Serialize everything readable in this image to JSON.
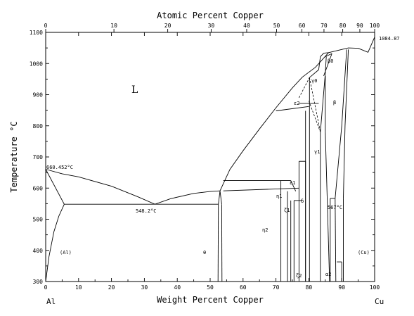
{
  "chart_data": {
    "type": "phase-diagram",
    "top_axis": {
      "title": "Atomic Percent Copper",
      "ticks": [
        "0",
        "10",
        "20",
        "30",
        "40",
        "50",
        "60",
        "70",
        "80",
        "90",
        "100"
      ],
      "tick_weight_positions": [
        0,
        20.75,
        37.1,
        50.3,
        61.1,
        70.2,
        77.9,
        84.6,
        90.3,
        95.5,
        100
      ]
    },
    "x_axis": {
      "title": "Weight Percent Copper",
      "ticks": [
        "0",
        "10",
        "20",
        "30",
        "40",
        "50",
        "60",
        "70",
        "80",
        "90",
        "100"
      ],
      "range": [
        0,
        100
      ]
    },
    "y_axis": {
      "title": "Temperature °C",
      "ticks": [
        "300",
        "400",
        "500",
        "600",
        "700",
        "800",
        "900",
        "1000",
        "1100"
      ],
      "range": [
        300,
        1100
      ]
    },
    "corner_labels": {
      "left": "Al",
      "right": "Cu"
    },
    "annotations": {
      "al_melting": "660.452°C",
      "eutectic": "548.2°C",
      "cu_melting": "1084.87",
      "eutectoid": "567°C"
    },
    "phase_labels": {
      "liquid": "L",
      "al": "(Al)",
      "cu": "(Cu)",
      "theta": "θ",
      "eta1": "η1",
      "eta2": "η2",
      "zeta1": "ζ1",
      "zeta2": "ζ2",
      "delta": "δ",
      "epsilon1": "ε1",
      "epsilon2": "ε2",
      "gamma0": "γ0",
      "gamma1": "γ1",
      "beta": "β",
      "beta0": "β0",
      "alpha2": "α2"
    },
    "boundaries": [
      [
        [
          0,
          660.452
        ],
        [
          5,
          646
        ],
        [
          10,
          636
        ],
        [
          20,
          606
        ],
        [
          28,
          572
        ],
        [
          33.2,
          548.2
        ],
        [
          38,
          566
        ],
        [
          45,
          583
        ],
        [
          50,
          589
        ],
        [
          53,
          591
        ]
      ],
      [
        [
          53,
          591
        ],
        [
          56,
          660
        ],
        [
          60,
          720
        ],
        [
          65,
          790
        ],
        [
          70,
          858
        ],
        [
          75,
          922
        ],
        [
          78,
          956
        ],
        [
          82,
          988
        ],
        [
          86,
          1035
        ],
        [
          88,
          1040
        ]
      ],
      [
        [
          88,
          1040
        ],
        [
          92,
          1050
        ],
        [
          95,
          1049
        ],
        [
          98,
          1036
        ],
        [
          100,
          1084.87
        ]
      ],
      [
        [
          0,
          660.452
        ],
        [
          5.65,
          548.2
        ]
      ],
      [
        [
          0,
          300
        ],
        [
          1,
          380
        ],
        [
          2.5,
          460
        ],
        [
          4,
          510
        ],
        [
          5.65,
          548.2
        ]
      ],
      [
        [
          5.65,
          548.2
        ],
        [
          52.5,
          548.2
        ]
      ],
      [
        [
          52.5,
          548.2
        ],
        [
          53,
          591
        ],
        [
          53.5,
          548.2
        ]
      ],
      [
        [
          52.5,
          548.2
        ],
        [
          52.4,
          300
        ]
      ],
      [
        [
          53.5,
          548.2
        ],
        [
          53.6,
          300
        ]
      ],
      [
        [
          54,
          591
        ],
        [
          77,
          600
        ]
      ],
      [
        [
          54,
          624
        ],
        [
          74.5,
          624
        ]
      ],
      [
        [
          74.5,
          624
        ],
        [
          76,
          590
        ]
      ],
      [
        [
          71.5,
          300
        ],
        [
          71.5,
          624
        ]
      ],
      [
        [
          73.5,
          300
        ],
        [
          73.5,
          590
        ]
      ],
      [
        [
          74.5,
          300
        ],
        [
          74.5,
          560
        ]
      ],
      [
        [
          75.5,
          300
        ],
        [
          75.5,
          560
        ]
      ],
      [
        [
          77,
          300
        ],
        [
          77,
          686
        ]
      ],
      [
        [
          79,
          300
        ],
        [
          79,
          686
        ]
      ],
      [
        [
          77,
          686
        ],
        [
          79,
          686
        ]
      ],
      [
        [
          75.5,
          560
        ],
        [
          78,
          560
        ]
      ],
      [
        [
          70,
          848
        ],
        [
          80,
          862
        ]
      ],
      [
        [
          79,
          848
        ],
        [
          79,
          300
        ]
      ],
      [
        [
          80.2,
          300
        ],
        [
          80.2,
          955
        ]
      ],
      [
        [
          80.2,
          955
        ],
        [
          83,
          980
        ]
      ],
      [
        [
          77,
          872
        ],
        [
          83,
          872
        ]
      ],
      [
        [
          83,
          980
        ],
        [
          83.5,
          1022
        ],
        [
          84.5,
          1033
        ],
        [
          86,
          1035
        ]
      ],
      [
        [
          83.5,
          300
        ],
        [
          83.5,
          780
        ]
      ],
      [
        [
          83.5,
          780
        ],
        [
          85,
          968
        ],
        [
          85.3,
          1022
        ]
      ],
      [
        [
          85,
          1022
        ],
        [
          87,
          1032
        ]
      ],
      [
        [
          84.5,
          960
        ],
        [
          87,
          1032
        ]
      ],
      [
        [
          85,
          960
        ],
        [
          85,
          780
        ]
      ],
      [
        [
          85,
          780
        ],
        [
          86.3,
          300
        ]
      ],
      [
        [
          86.5,
          300
        ],
        [
          86.5,
          567
        ]
      ],
      [
        [
          86.5,
          567
        ],
        [
          88,
          567
        ]
      ],
      [
        [
          88,
          567
        ],
        [
          90,
          800
        ],
        [
          91.5,
          1045
        ]
      ],
      [
        [
          88,
          567
        ],
        [
          88.2,
          300
        ]
      ],
      [
        [
          88.5,
          363
        ],
        [
          90,
          363
        ]
      ],
      [
        [
          90,
          300
        ],
        [
          90,
          363
        ]
      ],
      [
        [
          90.5,
          300
        ],
        [
          90.5,
          567
        ]
      ],
      [
        [
          90.5,
          567
        ],
        [
          91,
          800
        ],
        [
          92,
          1045
        ]
      ]
    ],
    "dashed_boundaries": [
      [
        [
          77,
          890
        ],
        [
          80.2,
          955
        ]
      ],
      [
        [
          80,
          880
        ],
        [
          83.5,
          780
        ]
      ],
      [
        [
          80.2,
          955
        ],
        [
          83.5,
          780
        ]
      ]
    ],
    "grid": false
  }
}
